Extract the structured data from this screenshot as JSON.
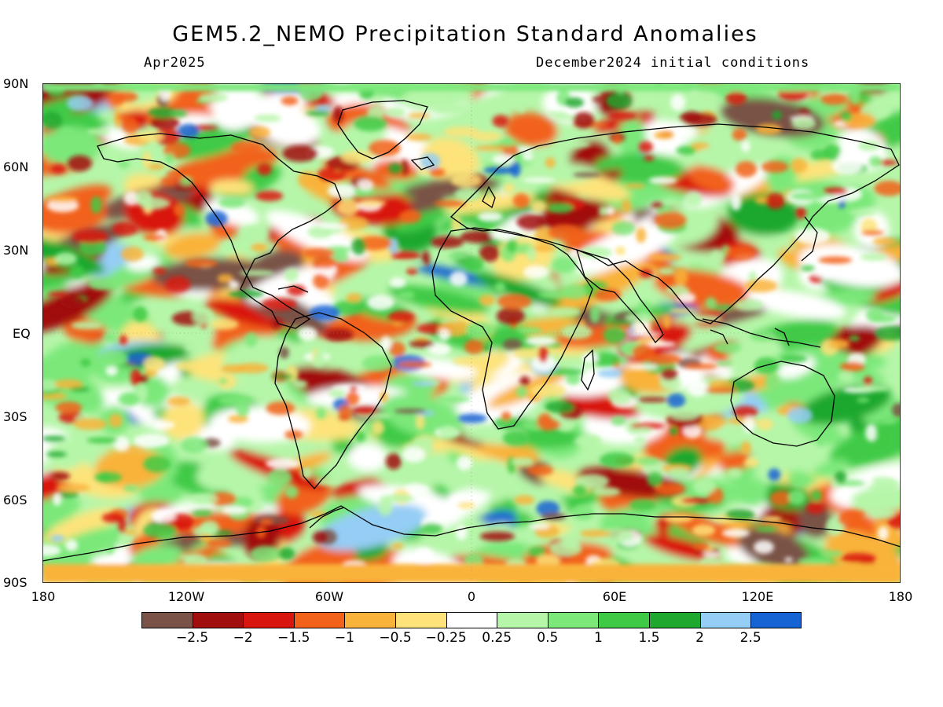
{
  "title": "GEM5.2_NEMO Precipitation Standard Anomalies",
  "valid_month": "Apr2025",
  "initial_conditions": "December2024 initial conditions",
  "lat_labels": [
    "90N",
    "60N",
    "30N",
    "EQ",
    "30S",
    "60S",
    "90S"
  ],
  "lon_labels": [
    "180",
    "120W",
    "60W",
    "0",
    "60E",
    "120E",
    "180"
  ],
  "colorbar": {
    "colors": [
      "#7a5247",
      "#a10e0e",
      "#d9150f",
      "#f2621a",
      "#f9b33a",
      "#fde37a",
      "#ffffff",
      "#b6f6a9",
      "#7ce87a",
      "#3fca46",
      "#1fa82e",
      "#94cdf5",
      "#1663d3"
    ],
    "labels": [
      "-2.5",
      "-2",
      "-1.5",
      "-1",
      "-0.5",
      "-0.25",
      "0.25",
      "0.5",
      "1",
      "1.5",
      "2",
      "2.5"
    ]
  }
}
